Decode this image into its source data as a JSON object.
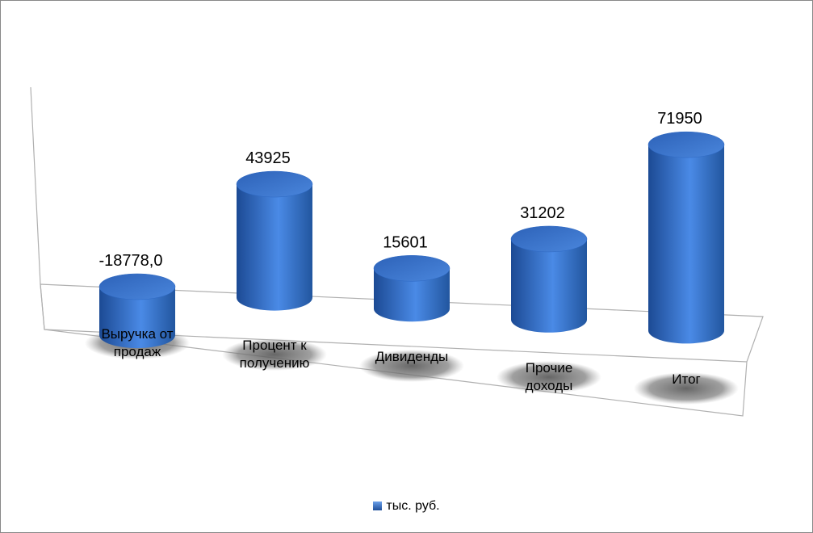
{
  "chart_data": {
    "type": "cylinder",
    "categories": [
      "Выручка от продаж",
      "Процент к получению",
      "Дивиденды",
      "Прочие доходы",
      "Итог"
    ],
    "series": [
      {
        "name": "тыс. руб.",
        "color": "#2e69c4",
        "values": [
          -18778,
          43925,
          15601,
          31202,
          71950
        ],
        "value_labels": [
          "-18778,0",
          "43925",
          "15601",
          "31202",
          "71950"
        ]
      }
    ],
    "ylim": [
      -20000,
      80000
    ]
  }
}
